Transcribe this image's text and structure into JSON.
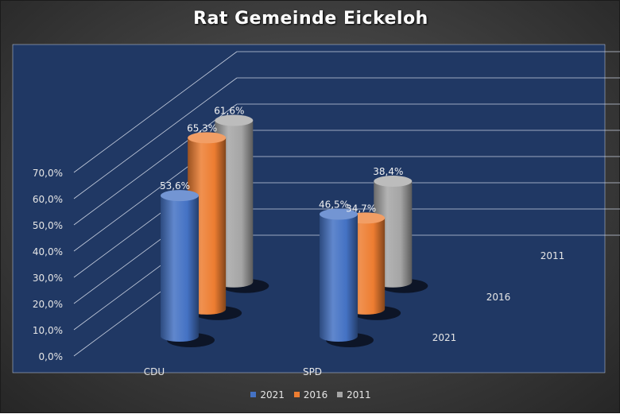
{
  "chart_data": {
    "type": "bar",
    "title": "Rat Gemeinde Eickeloh",
    "categories": [
      "CDU",
      "SPD"
    ],
    "series": [
      {
        "name": "2021",
        "values": [
          53.6,
          46.5
        ],
        "labels": [
          "53,6%",
          "46,5%"
        ],
        "color": "#4472c4"
      },
      {
        "name": "2016",
        "values": [
          65.3,
          34.7
        ],
        "labels": [
          "65,3%",
          "34,7%"
        ],
        "color": "#ed7d31"
      },
      {
        "name": "2011",
        "values": [
          61.6,
          38.4
        ],
        "labels": [
          "61,6%",
          "38,4%"
        ],
        "color": "#a5a5a5"
      }
    ],
    "ylim": [
      0,
      70
    ],
    "yticks": [
      0,
      10,
      20,
      30,
      40,
      50,
      60,
      70
    ],
    "ytick_labels": [
      "0,0%",
      "10,0%",
      "20,0%",
      "30,0%",
      "40,0%",
      "50,0%",
      "60,0%",
      "70,0%"
    ],
    "depth_labels": [
      "2021",
      "2016",
      "2011"
    ],
    "grid": true,
    "legend": "bottom",
    "style": "3d-cylinder",
    "background_color": "#203864"
  }
}
